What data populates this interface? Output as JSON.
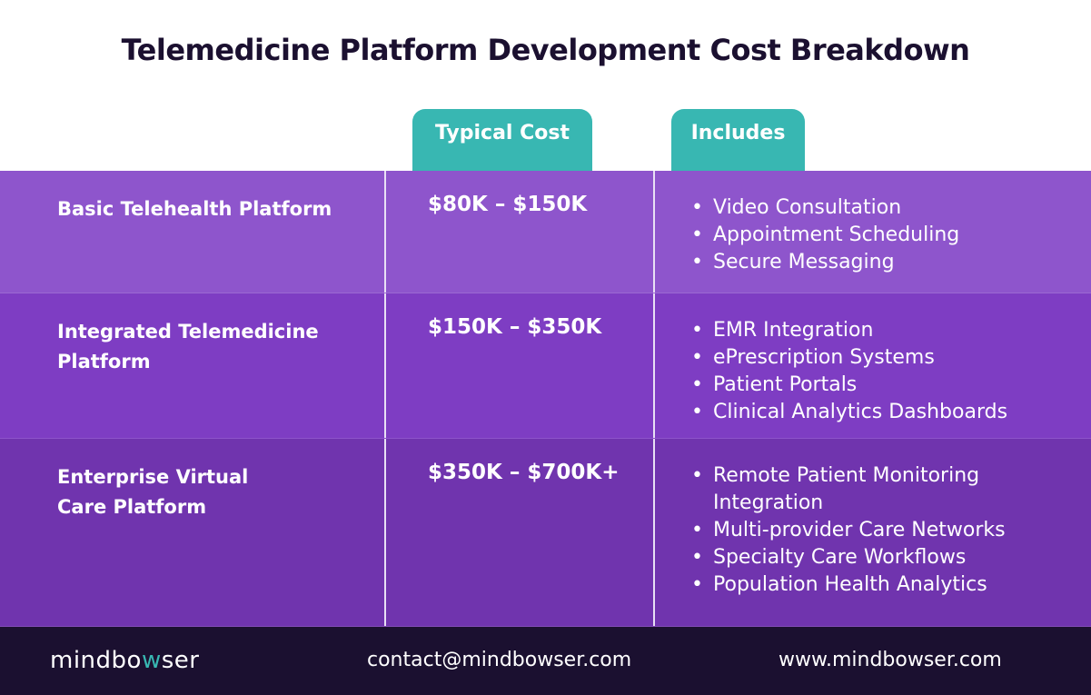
{
  "title": "Telemedicine Platform Development Cost Breakdown",
  "headers": {
    "cost": "Typical Cost",
    "includes": "Includes"
  },
  "colors": {
    "teal": "#38b7b2",
    "row1": "#8e55cc",
    "row2": "#7e3dc3",
    "row3": "#7034ae",
    "footer": "#1b1030"
  },
  "rows": [
    {
      "name": "Basic Telehealth Platform",
      "cost": "$80K – $150K",
      "includes": [
        "Video Consultation",
        "Appointment Scheduling",
        "Secure Messaging"
      ]
    },
    {
      "name": "Integrated Telemedicine Platform",
      "cost": "$150K – $350K",
      "includes": [
        "EMR Integration",
        "ePrescription Systems",
        "Patient Portals",
        "Clinical Analytics Dashboards"
      ]
    },
    {
      "name": "Enterprise Virtual Care Platform",
      "cost": "$350K – $700K+",
      "includes": [
        "Remote Patient Monitoring Integration",
        "Multi-provider Care Networks",
        "Specialty Care Workflows",
        "Population Health Analytics"
      ]
    }
  ],
  "footer": {
    "logo": "mindbowser",
    "email": "contact@mindbowser.com",
    "website": "www.mindbowser.com"
  }
}
